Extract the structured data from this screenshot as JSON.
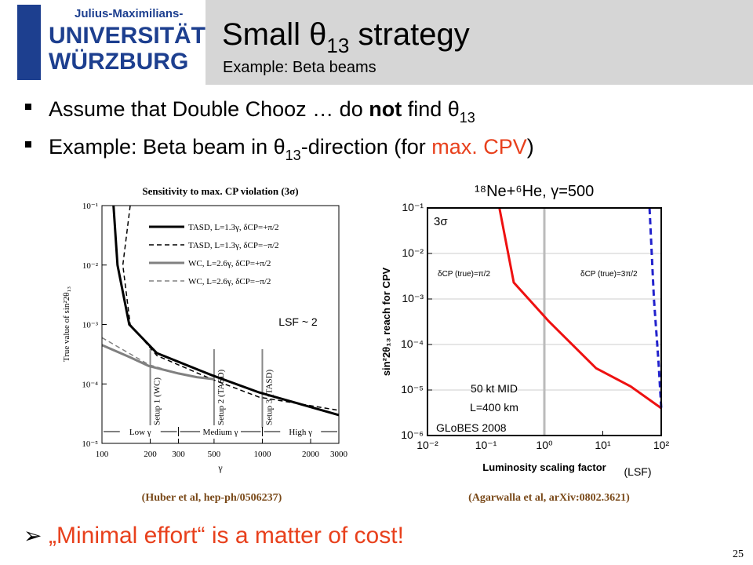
{
  "header": {
    "logo_line1": "Julius-Maximilians-",
    "logo_line2": "UNIVERSITÄT",
    "logo_line3": "WÜRZBURG",
    "title": {
      "text": "Small θ",
      "sub": "13",
      "rest": " strategy"
    },
    "subtitle": "Example: Beta beams"
  },
  "bullets": [
    {
      "parts": [
        "Assume that  Double Chooz … do ",
        "not",
        " find θ",
        "13"
      ]
    },
    {
      "parts": [
        "Example: Beta beam in θ",
        "13",
        "-direction (for ",
        "max.  CPV",
        ")"
      ]
    }
  ],
  "chart_data": [
    {
      "type": "line",
      "title": "Sensitivity to max. CP violation (3σ)",
      "x_label": "γ",
      "y_label": "True value of sin²2θ₁₃",
      "xlog": true,
      "ylog": true,
      "xlim": [
        100,
        3000
      ],
      "ylim": [
        1e-05,
        0.1
      ],
      "xticks": [
        100,
        200,
        300,
        500,
        1000,
        2000,
        3000
      ],
      "yticks": [
        {
          "value": 1e-05,
          "label": "10⁻⁵"
        },
        {
          "value": 0.0001,
          "label": "10⁻⁴"
        },
        {
          "value": 0.001,
          "label": "10⁻³"
        },
        {
          "value": 0.01,
          "label": "10⁻²"
        },
        {
          "value": 0.1,
          "label": "10⁻¹"
        }
      ],
      "series": [
        {
          "name": "TASD, L=1.3γ, δCP=+π/2",
          "color": "#000000",
          "dashed": false,
          "width": 3,
          "x": [
            118,
            125,
            148,
            220,
            485,
            955,
            3000
          ],
          "values": [
            0.1,
            0.01,
            0.001,
            0.00033,
            0.00014,
            7.2e-05,
            3e-05
          ]
        },
        {
          "name": "TASD, L=1.3γ, δCP=−π/2",
          "color": "#000000",
          "dashed": true,
          "width": 1.5,
          "x": [
            150,
            135,
            150,
            220,
            485,
            955,
            3000
          ],
          "values": [
            0.1,
            0.01,
            0.001,
            0.0003,
            0.00012,
            6e-05,
            3.6e-05
          ]
        },
        {
          "name": "WC, L=2.6γ, δCP=+π/2",
          "color": "#808080",
          "dashed": false,
          "width": 3,
          "x": [
            100,
            150,
            196,
            300,
            390,
            500
          ],
          "values": [
            0.00045,
            0.00028,
            0.0002,
            0.00015,
            0.00013,
            0.00012
          ]
        },
        {
          "name": "WC, L=2.6γ, δCP=−π/2",
          "color": "#808080",
          "dashed": true,
          "width": 1.5,
          "x": [
            100,
            150,
            196,
            300,
            390,
            500
          ],
          "values": [
            0.0006,
            0.00032,
            0.00021,
            0.00015,
            0.00013,
            0.00012
          ]
        }
      ],
      "setups": [
        {
          "text": "Setup 1 (WC)",
          "x": 200
        },
        {
          "text": "Setup 2 (TASD)",
          "x": 500
        },
        {
          "text": "Setup 3 (TASD)",
          "x": 1000
        }
      ],
      "regions": [
        {
          "text": "Low γ",
          "from": 100,
          "to": 300
        },
        {
          "text": "Medium γ",
          "from": 300,
          "to": 1000
        },
        {
          "text": "High γ",
          "from": 1000,
          "to": 3000
        }
      ],
      "note": "LSF ~ 2"
    },
    {
      "type": "line",
      "title": "¹⁸Ne+⁶He, γ=500",
      "x_label": "Luminosity scaling factor",
      "y_label": "sin²2θ₁₃ reach for CPV",
      "xlog": true,
      "ylog": true,
      "xlim": [
        0.01,
        100
      ],
      "ylim": [
        1e-06,
        0.1
      ],
      "xticks": [
        {
          "value": 0.01,
          "label": "10⁻²"
        },
        {
          "value": 0.1,
          "label": "10⁻¹"
        },
        {
          "value": 1,
          "label": "10⁰"
        },
        {
          "value": 10,
          "label": "10¹"
        },
        {
          "value": 100,
          "label": "10²"
        }
      ],
      "yticks": [
        {
          "value": 1e-06,
          "label": "10⁻⁶"
        },
        {
          "value": 1e-05,
          "label": "10⁻⁵"
        },
        {
          "value": 0.0001,
          "label": "10⁻⁴"
        },
        {
          "value": 0.001,
          "label": "10⁻³"
        },
        {
          "value": 0.01,
          "label": "10⁻²"
        },
        {
          "value": 0.1,
          "label": "10⁻¹"
        }
      ],
      "grid": true,
      "series": [
        {
          "color": "#ee1111",
          "dashed": false,
          "width": 3,
          "x": [
            0.17,
            0.3,
            1.2,
            7.7,
            30,
            100
          ],
          "values": [
            0.1,
            0.0023,
            0.00032,
            3e-05,
            1.2e-05,
            4e-06
          ]
        },
        {
          "color": "#2222cc",
          "dashed": true,
          "width": 3,
          "x": [
            63,
            75,
            90,
            100
          ],
          "values": [
            0.1,
            0.001,
            4e-05,
            4e-06
          ]
        }
      ],
      "marker_x": 1,
      "annotations": [
        "3σ",
        "δCP (true)=π/2",
        "δCP (true)=3π/2",
        "50 kt MID",
        "L=400 km",
        "GLoBES 2008"
      ],
      "note": "(LSF)"
    }
  ],
  "citations": [
    "(Huber et al, hep-ph/0506237)",
    "(Agarwalla et al, arXiv:0802.3621)"
  ],
  "final_bullet": "„Minimal effort“ is a matter of cost!",
  "page_number": "25"
}
